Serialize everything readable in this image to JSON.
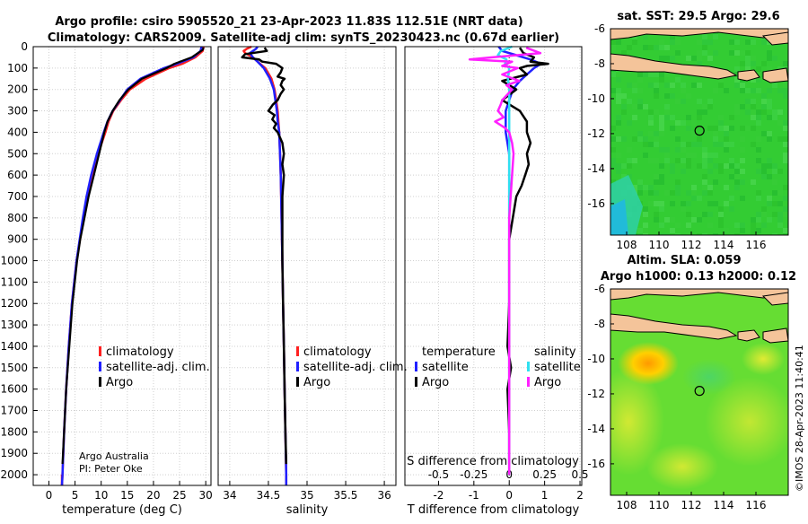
{
  "header": {
    "title_line1": "Argo profile: csiro 5905520_21 23-Apr-2023 11.83S 112.51E (NRT data)",
    "title_line2": "Climatology: CARS2009. Satellite-adj clim: synTS_20230423.nc (0.67d earlier)"
  },
  "credit": {
    "line1": "Argo Australia",
    "line2": "PI: Peter Oke"
  },
  "watermark": "©IMOS 28-Apr-2023 11:40:41",
  "colors": {
    "climatology": "#ff2020",
    "satellite": "#2020ff",
    "argo": "#000000",
    "sal_satellite": "#30e0f0",
    "sal_argo": "#ff20ff",
    "land": "#f4c49a",
    "ocean_green": "#33cc33"
  },
  "chart_data": [
    {
      "type": "line",
      "name": "temperature-profile",
      "xlabel": "temperature (deg C)",
      "ylabel": "",
      "xlim": [
        -3,
        31
      ],
      "ylim": [
        2050,
        0
      ],
      "xticks": [
        "0",
        "5",
        "10",
        "15",
        "20",
        "25",
        "30"
      ],
      "xtick_values": [
        0,
        5,
        10,
        15,
        20,
        25,
        30
      ],
      "yticks": [
        "0",
        "100",
        "200",
        "300",
        "400",
        "500",
        "600",
        "700",
        "800",
        "900",
        "1000",
        "1100",
        "1200",
        "1300",
        "1400",
        "1500",
        "1600",
        "1700",
        "1800",
        "1900",
        "2000"
      ],
      "legend": [
        "climatology",
        "satellite-adj. clim.",
        "Argo"
      ],
      "series": [
        {
          "name": "climatology",
          "depth": [
            0,
            20,
            50,
            80,
            100,
            150,
            200,
            250,
            300,
            350,
            400,
            500,
            600,
            700,
            800,
            1000,
            1200,
            1400,
            1600,
            1800,
            2000,
            2050
          ],
          "values": [
            29.6,
            29.4,
            28.0,
            25.5,
            23.0,
            18.5,
            15.5,
            13.8,
            12.3,
            11.4,
            10.8,
            9.4,
            8.2,
            7.3,
            6.6,
            5.3,
            4.4,
            3.8,
            3.3,
            2.9,
            2.6,
            2.5
          ]
        },
        {
          "name": "satellite-adj. clim.",
          "depth": [
            0,
            20,
            50,
            80,
            100,
            150,
            200,
            250,
            300,
            350,
            400,
            500,
            600,
            700,
            800,
            1000,
            1200,
            1400,
            1600,
            1800,
            2000,
            2050
          ],
          "values": [
            29.2,
            29.0,
            27.6,
            24.5,
            22.0,
            17.5,
            15.0,
            13.6,
            12.2,
            11.2,
            10.5,
            9.2,
            8.1,
            7.2,
            6.5,
            5.3,
            4.4,
            3.8,
            3.3,
            2.9,
            2.6,
            2.5
          ]
        },
        {
          "name": "Argo",
          "depth": [
            5,
            15,
            30,
            50,
            80,
            100,
            150,
            200,
            250,
            300,
            350,
            400,
            500,
            600,
            700,
            800,
            900,
            1000,
            1200,
            1400,
            1600,
            1800,
            1950
          ],
          "values": [
            29.6,
            29.4,
            28.5,
            27.3,
            24.0,
            22.5,
            17.8,
            15.2,
            13.5,
            12.2,
            11.2,
            10.6,
            9.6,
            8.6,
            7.6,
            6.8,
            6.0,
            5.4,
            4.5,
            3.9,
            3.3,
            2.9,
            2.6
          ]
        }
      ]
    },
    {
      "type": "line",
      "name": "salinity-profile",
      "xlabel": "salinity",
      "xlim": [
        33.85,
        36.15
      ],
      "ylim": [
        2050,
        0
      ],
      "xticks": [
        "34",
        "34.5",
        "35",
        "35.5",
        "36"
      ],
      "xtick_values": [
        34,
        34.5,
        35,
        35.5,
        36
      ],
      "legend": [
        "climatology",
        "satellite-adj. clim.",
        "Argo"
      ],
      "series": [
        {
          "name": "climatology",
          "depth": [
            0,
            10,
            20,
            30,
            50,
            70,
            100,
            150,
            200,
            250,
            300,
            350,
            400,
            500,
            600,
            800,
            1000,
            1200,
            1400,
            1600,
            1800,
            2000,
            2050
          ],
          "values": [
            34.28,
            34.22,
            34.18,
            34.2,
            34.3,
            34.36,
            34.46,
            34.54,
            34.58,
            34.6,
            34.62,
            34.63,
            34.64,
            34.65,
            34.66,
            34.67,
            34.68,
            34.69,
            34.7,
            34.71,
            34.72,
            34.73,
            34.73
          ]
        },
        {
          "name": "satellite-adj. clim.",
          "depth": [
            0,
            10,
            20,
            30,
            50,
            70,
            100,
            150,
            200,
            250,
            300,
            350,
            400,
            500,
            600,
            800,
            1000,
            1200,
            1400,
            1600,
            1800,
            2000,
            2050
          ],
          "values": [
            34.36,
            34.34,
            34.3,
            34.26,
            34.3,
            34.36,
            34.44,
            34.52,
            34.57,
            34.59,
            34.61,
            34.62,
            34.64,
            34.65,
            34.66,
            34.67,
            34.68,
            34.69,
            34.7,
            34.71,
            34.72,
            34.73,
            34.73
          ]
        },
        {
          "name": "Argo",
          "depth": [
            5,
            20,
            35,
            50,
            60,
            70,
            80,
            100,
            120,
            140,
            150,
            160,
            180,
            200,
            220,
            250,
            270,
            300,
            320,
            340,
            360,
            380,
            400,
            450,
            500,
            550,
            600,
            700,
            800,
            900,
            1000,
            1200,
            1400,
            1600,
            1800,
            1950
          ],
          "values": [
            34.45,
            34.48,
            34.2,
            34.16,
            34.38,
            34.42,
            34.6,
            34.68,
            34.66,
            34.62,
            34.71,
            34.68,
            34.66,
            34.7,
            34.66,
            34.62,
            34.56,
            34.5,
            34.58,
            34.55,
            34.6,
            34.57,
            34.62,
            34.68,
            34.7,
            34.68,
            34.7,
            34.68,
            34.68,
            34.68,
            34.68,
            34.69,
            34.7,
            34.71,
            34.72,
            34.73
          ]
        }
      ]
    },
    {
      "type": "line",
      "name": "difference-profile",
      "xlabel": "T difference from climatology",
      "xlabel_top": "S difference from climatology",
      "xlim": [
        -2.95,
        2.05
      ],
      "ylim": [
        2050,
        0
      ],
      "xticks": [
        "-2",
        "-1",
        "0",
        "1",
        "2"
      ],
      "xtick_values": [
        -2,
        -1,
        0,
        1,
        2
      ],
      "sticks": [
        "-0.5",
        "-0.25",
        "0",
        "0.25",
        "0.5"
      ],
      "stick_values": [
        -0.5,
        -0.25,
        0,
        0.25,
        0.5
      ],
      "legend_temperature_title": "temperature",
      "legend_salinity_title": "salinity",
      "legend_temperature": [
        "satellite",
        "Argo"
      ],
      "legend_salinity": [
        "satellite",
        "Argo"
      ],
      "series": [
        {
          "name": "T satellite",
          "depth": [
            0,
            20,
            40,
            60,
            80,
            100,
            130,
            160,
            200,
            250,
            300,
            350,
            400,
            500,
            600,
            800,
            1000,
            1500,
            2000
          ],
          "values": [
            -0.3,
            -0.2,
            0.2,
            0.6,
            0.9,
            0.7,
            0.5,
            0.3,
            0.1,
            0.0,
            -0.1,
            -0.1,
            -0.1,
            0.0,
            0.0,
            0.0,
            0.0,
            0.0,
            0.0
          ]
        },
        {
          "name": "T Argo",
          "depth": [
            5,
            30,
            50,
            70,
            80,
            90,
            100,
            130,
            160,
            200,
            250,
            300,
            350,
            400,
            450,
            500,
            550,
            600,
            650,
            700,
            800,
            900,
            1000,
            1200,
            1400,
            1500,
            1600,
            1800,
            1950
          ],
          "values": [
            0.3,
            0.4,
            0.7,
            0.6,
            1.1,
            0.5,
            0.3,
            0.5,
            -0.2,
            0.2,
            -0.2,
            0.3,
            0.5,
            0.5,
            0.6,
            0.5,
            0.55,
            0.45,
            0.35,
            0.2,
            0.1,
            0.0,
            0.0,
            0.0,
            -0.05,
            0.05,
            -0.05,
            0.0,
            0.0
          ]
        },
        {
          "name": "S satellite",
          "depth": [
            0,
            20,
            40,
            60,
            80,
            100,
            150,
            200,
            300,
            400,
            500,
            700,
            1000,
            1500,
            2000
          ],
          "values": [
            0.02,
            -0.06,
            -0.08,
            -0.02,
            -0.03,
            0.0,
            -0.01,
            0.0,
            0.0,
            0.0,
            0.0,
            0.0,
            0.0,
            0.0,
            0.0
          ]
        },
        {
          "name": "S Argo",
          "depth": [
            5,
            30,
            50,
            60,
            70,
            90,
            100,
            130,
            160,
            180,
            200,
            250,
            270,
            300,
            330,
            350,
            380,
            400,
            450,
            500,
            600,
            800,
            1000,
            1500,
            2000
          ],
          "values": [
            0.12,
            0.22,
            -0.12,
            -0.28,
            0.02,
            -0.05,
            0.06,
            -0.05,
            0.07,
            -0.02,
            0.02,
            -0.05,
            -0.06,
            -0.08,
            -0.04,
            -0.1,
            -0.03,
            0.0,
            0.02,
            0.03,
            0.02,
            0.0,
            0.0,
            0.0,
            0.0
          ]
        }
      ]
    },
    {
      "type": "heatmap",
      "name": "sst-map",
      "title": "sat. SST: 29.5 Argo: 29.6",
      "xlim": [
        107,
        118
      ],
      "ylim": [
        -17.8,
        -6
      ],
      "xticks": [
        "108",
        "110",
        "112",
        "114",
        "116"
      ],
      "xtick_values": [
        108,
        110,
        112,
        114,
        116
      ],
      "yticks": [
        "-6",
        "-8",
        "-10",
        "-12",
        "-14",
        "-16"
      ],
      "ytick_values": [
        -6,
        -8,
        -10,
        -12,
        -14,
        -16
      ],
      "marker": {
        "lon": 112.51,
        "lat": -11.83
      }
    },
    {
      "type": "heatmap",
      "name": "sla-map",
      "title": "Altim. SLA: 0.059",
      "subtitle": "Argo h1000: 0.13 h2000: 0.12",
      "xlim": [
        107,
        118
      ],
      "ylim": [
        -17.8,
        -6
      ],
      "xticks": [
        "108",
        "110",
        "112",
        "114",
        "116"
      ],
      "xtick_values": [
        108,
        110,
        112,
        114,
        116
      ],
      "yticks": [
        "-6",
        "-8",
        "-10",
        "-12",
        "-14",
        "-16"
      ],
      "ytick_values": [
        -6,
        -8,
        -10,
        -12,
        -14,
        -16
      ],
      "marker": {
        "lon": 112.51,
        "lat": -11.83
      }
    }
  ]
}
